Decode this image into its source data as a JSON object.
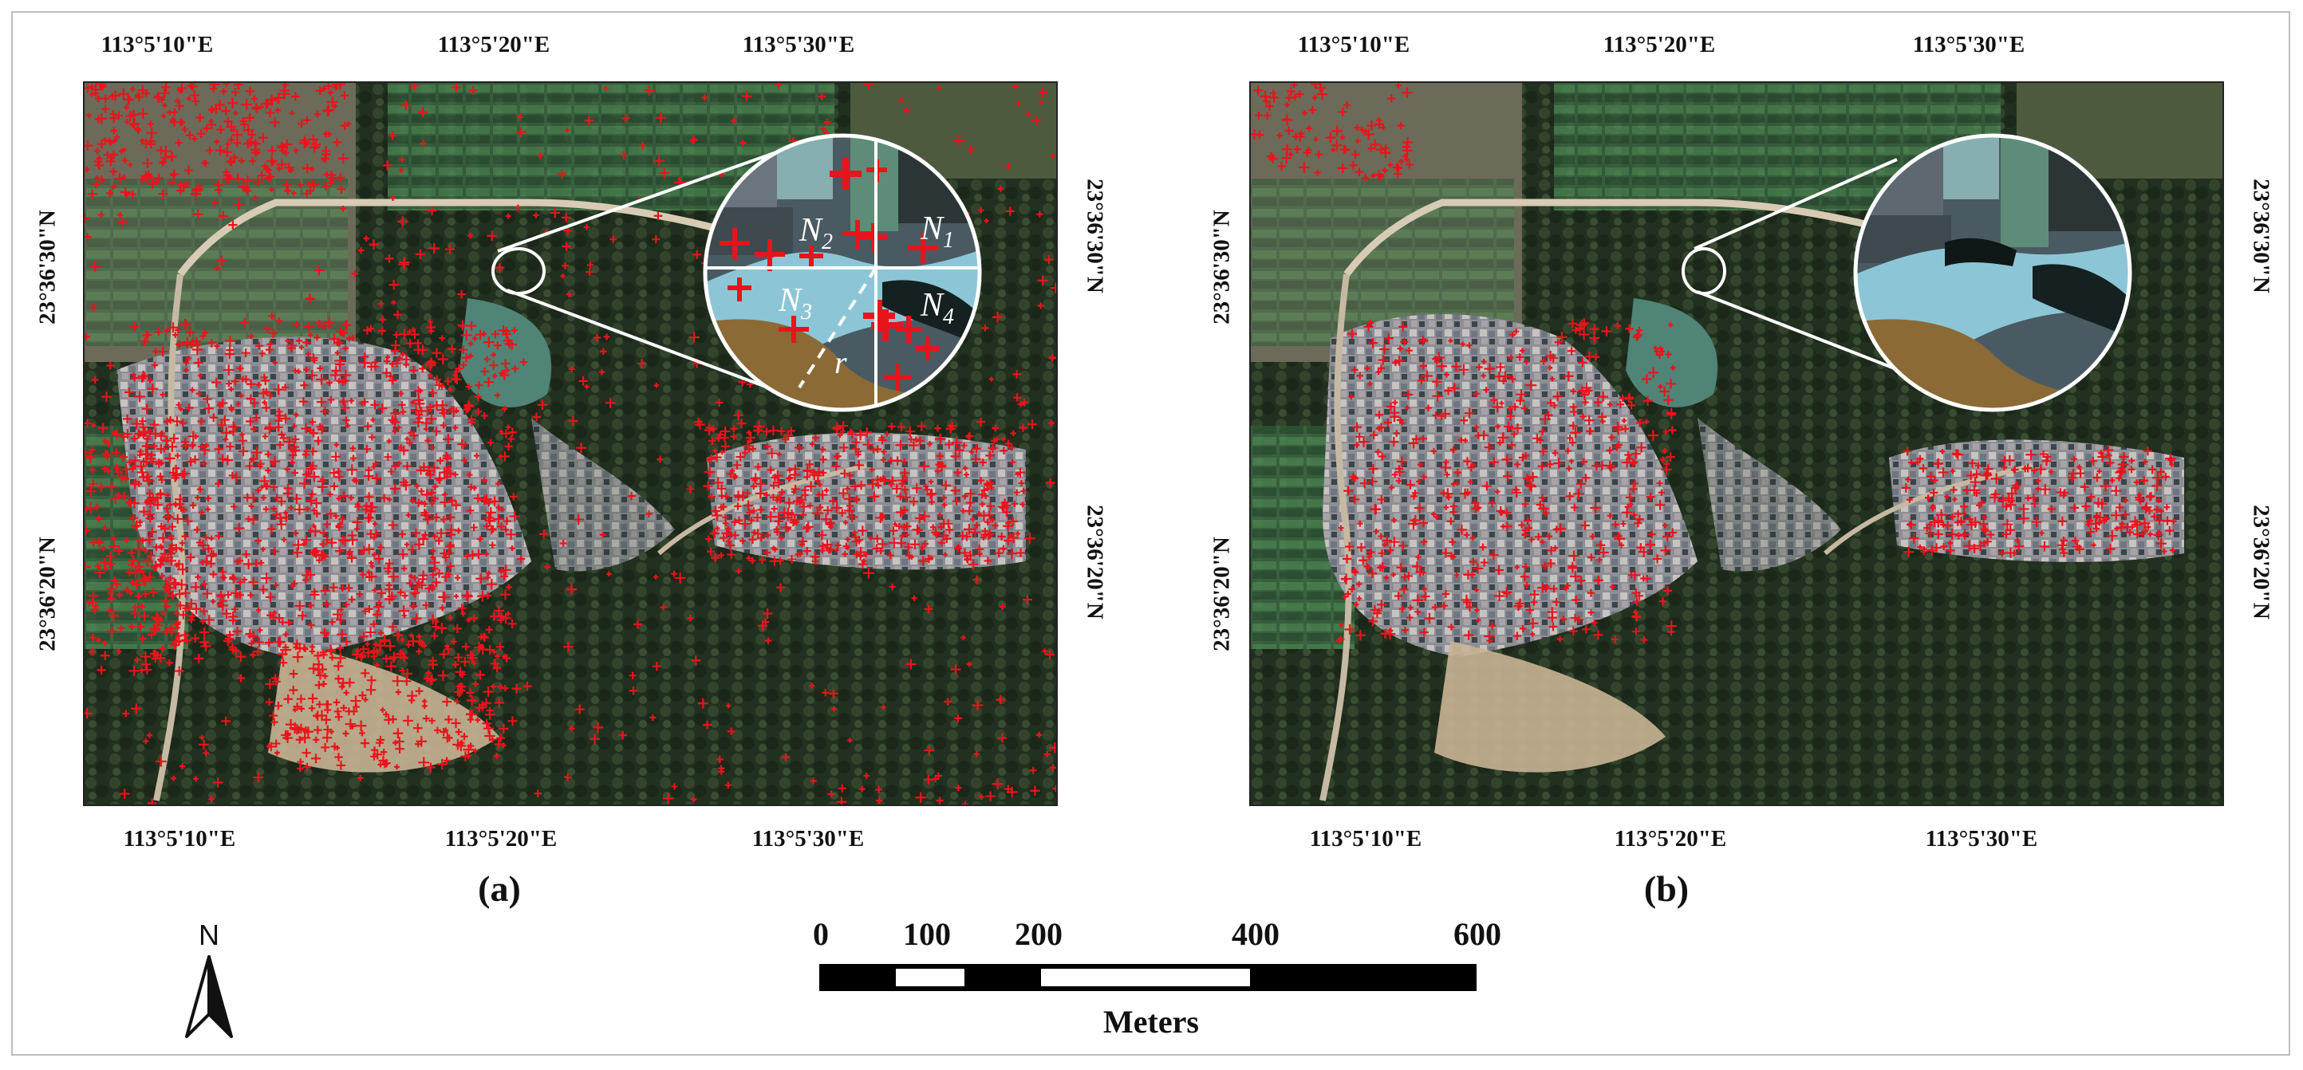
{
  "figure": {
    "panel_a": {
      "label": "(a)",
      "top_lon_labels": [
        "113°5'10\"E",
        "113°5'20\"E",
        "113°5'30\"E"
      ],
      "bottom_lon_labels": [
        "113°5'10\"E",
        "113°5'20\"E",
        "113°5'30\"E"
      ],
      "left_lat_labels": [
        "23°36'30\"N",
        "23°36'20\"N"
      ],
      "right_lat_labels": [
        "23°36'30\"N",
        "23°36'20\"N"
      ],
      "inset_labels": {
        "n1": "N",
        "n1_sub": "1",
        "n2": "N",
        "n2_sub": "2",
        "n3": "N",
        "n3_sub": "3",
        "n4": "N",
        "n4_sub": "4",
        "radius": "r"
      },
      "feature_point_color": "#e8141c"
    },
    "panel_b": {
      "label": "(b)",
      "top_lon_labels": [
        "113°5'10\"E",
        "113°5'20\"E",
        "113°5'30\"E"
      ],
      "bottom_lon_labels": [
        "113°5'10\"E",
        "113°5'20\"E",
        "113°5'30\"E"
      ],
      "left_lat_labels": [
        "23°36'30\"N",
        "23°36'20\"N"
      ],
      "right_lat_labels": [
        "23°36'30\"N",
        "23°36'20\"N"
      ],
      "feature_point_color": "#e8141c"
    },
    "north_arrow": {
      "letter": "N"
    },
    "scale_bar": {
      "ticks": [
        "0",
        "100",
        "200",
        "400",
        "600"
      ],
      "tick_values": [
        0,
        100,
        200,
        400,
        600
      ],
      "unit": "Meters"
    },
    "colors": {
      "vegetation": "#2a3a2a",
      "bare_soil": "#b9a58c",
      "water": "#5c8f86",
      "points": "#e8141c"
    }
  }
}
